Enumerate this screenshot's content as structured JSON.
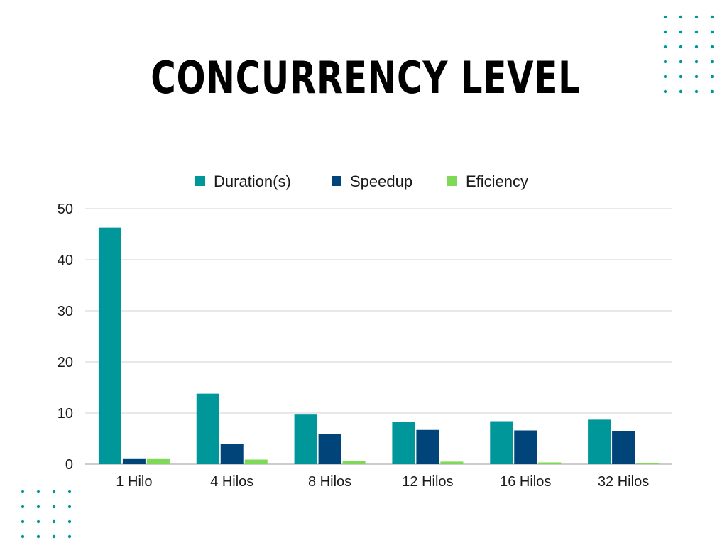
{
  "title": "CONCURRENCY LEVEL",
  "decor": {
    "dot_color": "#00979A"
  },
  "chart_data": {
    "type": "bar",
    "categories": [
      "1 Hilo",
      "4 Hilos",
      "8 Hilos",
      "12 Hilos",
      "16 Hilos",
      "32 Hilos"
    ],
    "series": [
      {
        "name": "Duration(s)",
        "color": "#00979A",
        "values": [
          46.3,
          13.8,
          9.7,
          8.3,
          8.4,
          8.7
        ]
      },
      {
        "name": "Speedup",
        "color": "#01447A",
        "values": [
          1.0,
          3.98,
          5.9,
          6.7,
          6.6,
          6.5
        ]
      },
      {
        "name": "Eficiency",
        "color": "#7ED957",
        "values": [
          1.0,
          0.9,
          0.6,
          0.5,
          0.35,
          0.15
        ]
      }
    ],
    "ylim": [
      0,
      50
    ],
    "yticks": [
      0,
      10,
      20,
      30,
      40,
      50
    ],
    "grid": true,
    "legend_position": "top",
    "xlabel": "",
    "ylabel": ""
  }
}
